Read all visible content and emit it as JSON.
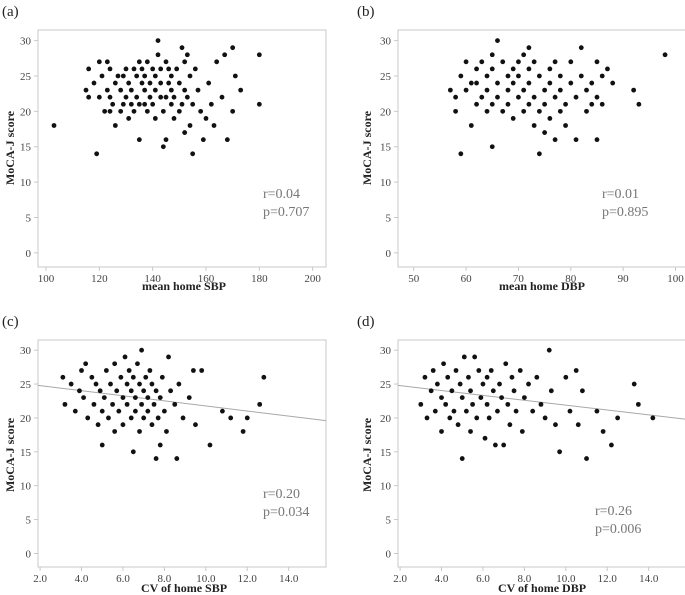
{
  "chart_data": [
    {
      "type": "scatter",
      "panel": "(a)",
      "xlabel": "mean home SBP",
      "ylabel": "MoCA-J score",
      "xlim": [
        97,
        205
      ],
      "ylim": [
        -2,
        31.5
      ],
      "xticks": [
        "100",
        "120",
        "140",
        "160",
        "180",
        "200"
      ],
      "xtickvals": [
        100,
        120,
        140,
        160,
        180,
        200
      ],
      "yticks": [
        "0",
        "5",
        "10",
        "15",
        "20",
        "25",
        "30"
      ],
      "ytickvals": [
        0,
        5,
        10,
        15,
        20,
        25,
        30
      ],
      "stats": [
        "r=0.04",
        "p=0.707"
      ],
      "fit_line": null,
      "points": [
        [
          103,
          18
        ],
        [
          115,
          23
        ],
        [
          116,
          22
        ],
        [
          116,
          26
        ],
        [
          118,
          24
        ],
        [
          119,
          14
        ],
        [
          120,
          22
        ],
        [
          120,
          27
        ],
        [
          121,
          25
        ],
        [
          122,
          20
        ],
        [
          123,
          23
        ],
        [
          123,
          27
        ],
        [
          124,
          20
        ],
        [
          124,
          22
        ],
        [
          124,
          26
        ],
        [
          125,
          21
        ],
        [
          126,
          18
        ],
        [
          126,
          24
        ],
        [
          127,
          25
        ],
        [
          128,
          20
        ],
        [
          128,
          23
        ],
        [
          129,
          21
        ],
        [
          129,
          25
        ],
        [
          130,
          22
        ],
        [
          130,
          26
        ],
        [
          131,
          19
        ],
        [
          131,
          24
        ],
        [
          132,
          21
        ],
        [
          132,
          23
        ],
        [
          133,
          20
        ],
        [
          133,
          26
        ],
        [
          134,
          22
        ],
        [
          134,
          25
        ],
        [
          135,
          16
        ],
        [
          135,
          21
        ],
        [
          135,
          27
        ],
        [
          136,
          24
        ],
        [
          136,
          26
        ],
        [
          137,
          21
        ],
        [
          137,
          23
        ],
        [
          137,
          25
        ],
        [
          138,
          20
        ],
        [
          138,
          27
        ],
        [
          139,
          22
        ],
        [
          139,
          24
        ],
        [
          140,
          21
        ],
        [
          140,
          26
        ],
        [
          141,
          19
        ],
        [
          141,
          23
        ],
        [
          141,
          25
        ],
        [
          142,
          28
        ],
        [
          142,
          30
        ],
        [
          143,
          22
        ],
        [
          143,
          24
        ],
        [
          143,
          26
        ],
        [
          144,
          15
        ],
        [
          144,
          20
        ],
        [
          145,
          16
        ],
        [
          145,
          22
        ],
        [
          145,
          27
        ],
        [
          146,
          24
        ],
        [
          146,
          26
        ],
        [
          147,
          21
        ],
        [
          147,
          23
        ],
        [
          147,
          25
        ],
        [
          148,
          19
        ],
        [
          148,
          22
        ],
        [
          149,
          26
        ],
        [
          150,
          20
        ],
        [
          150,
          24
        ],
        [
          151,
          29
        ],
        [
          151,
          21
        ],
        [
          152,
          17
        ],
        [
          152,
          23
        ],
        [
          152,
          27
        ],
        [
          153,
          28
        ],
        [
          153,
          22
        ],
        [
          154,
          18
        ],
        [
          154,
          25
        ],
        [
          155,
          14
        ],
        [
          155,
          21
        ],
        [
          156,
          26
        ],
        [
          157,
          23
        ],
        [
          158,
          20
        ],
        [
          159,
          16
        ],
        [
          160,
          19
        ],
        [
          161,
          24
        ],
        [
          162,
          21
        ],
        [
          163,
          18
        ],
        [
          164,
          27
        ],
        [
          166,
          22
        ],
        [
          167,
          28
        ],
        [
          168,
          16
        ],
        [
          170,
          29
        ],
        [
          170,
          20
        ],
        [
          171,
          25
        ],
        [
          173,
          23
        ],
        [
          180,
          28
        ],
        [
          180,
          21
        ]
      ]
    },
    {
      "type": "scatter",
      "panel": "(b)",
      "xlabel": "mean home DBP",
      "ylabel": "MoCA-J score",
      "xlim": [
        47,
        102
      ],
      "ylim": [
        -2,
        31.5
      ],
      "xticks": [
        "50",
        "60",
        "70",
        "80",
        "90",
        "100"
      ],
      "xtickvals": [
        50,
        60,
        70,
        80,
        90,
        100
      ],
      "yticks": [
        "0",
        "5",
        "10",
        "15",
        "20",
        "25",
        "30"
      ],
      "ytickvals": [
        0,
        5,
        10,
        15,
        20,
        25,
        30
      ],
      "stats": [
        "r=0.01",
        "p=0.895"
      ],
      "fit_line": null,
      "points": [
        [
          57,
          23
        ],
        [
          58,
          20
        ],
        [
          58,
          22
        ],
        [
          59,
          14
        ],
        [
          59,
          25
        ],
        [
          60,
          27
        ],
        [
          60,
          23
        ],
        [
          61,
          18
        ],
        [
          61,
          24
        ],
        [
          62,
          21
        ],
        [
          62,
          26
        ],
        [
          62,
          24
        ],
        [
          63,
          22
        ],
        [
          63,
          27
        ],
        [
          64,
          20
        ],
        [
          64,
          25
        ],
        [
          64,
          23
        ],
        [
          65,
          21
        ],
        [
          65,
          26
        ],
        [
          65,
          28
        ],
        [
          65,
          15
        ],
        [
          66,
          30
        ],
        [
          66,
          24
        ],
        [
          66,
          22
        ],
        [
          67,
          27
        ],
        [
          67,
          20
        ],
        [
          68,
          25
        ],
        [
          68,
          23
        ],
        [
          68,
          21
        ],
        [
          69,
          26
        ],
        [
          69,
          19
        ],
        [
          69,
          24
        ],
        [
          70,
          22
        ],
        [
          70,
          27
        ],
        [
          70,
          25
        ],
        [
          71,
          23
        ],
        [
          71,
          28
        ],
        [
          71,
          20
        ],
        [
          72,
          21
        ],
        [
          72,
          29
        ],
        [
          72,
          24
        ],
        [
          72,
          26
        ],
        [
          73,
          22
        ],
        [
          73,
          18
        ],
        [
          73,
          27
        ],
        [
          74,
          25
        ],
        [
          74,
          14
        ],
        [
          74,
          20
        ],
        [
          75,
          23
        ],
        [
          75,
          21
        ],
        [
          75,
          17
        ],
        [
          76,
          26
        ],
        [
          76,
          24
        ],
        [
          76,
          19
        ],
        [
          77,
          22
        ],
        [
          77,
          27
        ],
        [
          77,
          16
        ],
        [
          78,
          25
        ],
        [
          78,
          20
        ],
        [
          78,
          23
        ],
        [
          79,
          18
        ],
        [
          79,
          21
        ],
        [
          80,
          27
        ],
        [
          80,
          24
        ],
        [
          81,
          16
        ],
        [
          81,
          22
        ],
        [
          82,
          29
        ],
        [
          82,
          25
        ],
        [
          83,
          23
        ],
        [
          83,
          20
        ],
        [
          84,
          21
        ],
        [
          84,
          24
        ],
        [
          85,
          22
        ],
        [
          85,
          27
        ],
        [
          85,
          16
        ],
        [
          86,
          21
        ],
        [
          86,
          25
        ],
        [
          87,
          26
        ],
        [
          88,
          24
        ],
        [
          92,
          23
        ],
        [
          93,
          21
        ],
        [
          98,
          28
        ]
      ]
    },
    {
      "type": "scatter",
      "panel": "(c)",
      "xlabel": "CV of home SBP",
      "ylabel": "MoCA-J score",
      "xlim": [
        1.9,
        15.8
      ],
      "ylim": [
        -2,
        31.5
      ],
      "xticks": [
        "2.0",
        "4.0",
        "6.0",
        "8.0",
        "10.0",
        "12.0",
        "14.0"
      ],
      "xtickvals": [
        2,
        4,
        6,
        8,
        10,
        12,
        14
      ],
      "yticks": [
        "0",
        "5",
        "10",
        "15",
        "20",
        "25",
        "30"
      ],
      "ytickvals": [
        0,
        5,
        10,
        15,
        20,
        25,
        30
      ],
      "stats": [
        "r=0.20",
        "p=0.034"
      ],
      "fit_line": [
        [
          1.9,
          24.8
        ],
        [
          15.8,
          19.6
        ]
      ],
      "points": [
        [
          3.1,
          26
        ],
        [
          3.2,
          22
        ],
        [
          3.5,
          25
        ],
        [
          3.7,
          21
        ],
        [
          3.9,
          24
        ],
        [
          4.0,
          27
        ],
        [
          4.1,
          23
        ],
        [
          4.2,
          28
        ],
        [
          4.3,
          20
        ],
        [
          4.5,
          26
        ],
        [
          4.6,
          22
        ],
        [
          4.7,
          25
        ],
        [
          4.8,
          19
        ],
        [
          4.9,
          24
        ],
        [
          5.0,
          16
        ],
        [
          5.0,
          21
        ],
        [
          5.1,
          23
        ],
        [
          5.2,
          27
        ],
        [
          5.3,
          20
        ],
        [
          5.4,
          25
        ],
        [
          5.5,
          22
        ],
        [
          5.6,
          18
        ],
        [
          5.6,
          28
        ],
        [
          5.7,
          24
        ],
        [
          5.8,
          21
        ],
        [
          5.9,
          26
        ],
        [
          6.0,
          23
        ],
        [
          6.0,
          19
        ],
        [
          6.1,
          29
        ],
        [
          6.2,
          25
        ],
        [
          6.2,
          22
        ],
        [
          6.3,
          27
        ],
        [
          6.4,
          20
        ],
        [
          6.4,
          24
        ],
        [
          6.5,
          15
        ],
        [
          6.5,
          26
        ],
        [
          6.6,
          21
        ],
        [
          6.6,
          23
        ],
        [
          6.7,
          28
        ],
        [
          6.8,
          18
        ],
        [
          6.8,
          25
        ],
        [
          6.9,
          22
        ],
        [
          6.9,
          30
        ],
        [
          7.0,
          24
        ],
        [
          7.0,
          20
        ],
        [
          7.1,
          26
        ],
        [
          7.2,
          21
        ],
        [
          7.2,
          23
        ],
        [
          7.3,
          27
        ],
        [
          7.4,
          19
        ],
        [
          7.4,
          25
        ],
        [
          7.5,
          22
        ],
        [
          7.6,
          14
        ],
        [
          7.6,
          24
        ],
        [
          7.7,
          20
        ],
        [
          7.8,
          16
        ],
        [
          7.8,
          23
        ],
        [
          7.9,
          26
        ],
        [
          8.0,
          21
        ],
        [
          8.1,
          18
        ],
        [
          8.2,
          29
        ],
        [
          8.3,
          24
        ],
        [
          8.5,
          22
        ],
        [
          8.6,
          14
        ],
        [
          8.7,
          25
        ],
        [
          8.9,
          20
        ],
        [
          9.2,
          23
        ],
        [
          9.4,
          27
        ],
        [
          9.5,
          19
        ],
        [
          9.8,
          27
        ],
        [
          10.2,
          16
        ],
        [
          10.8,
          21
        ],
        [
          11.2,
          20
        ],
        [
          11.8,
          18
        ],
        [
          12.0,
          20
        ],
        [
          12.6,
          22
        ],
        [
          12.8,
          26
        ]
      ]
    },
    {
      "type": "scatter",
      "panel": "(d)",
      "xlabel": "CV of home DBP",
      "ylabel": "MoCA-J score",
      "xlim": [
        1.9,
        15.8
      ],
      "ylim": [
        -2,
        31.5
      ],
      "xticks": [
        "2.0",
        "4.0",
        "6.0",
        "8.0",
        "10.0",
        "12.0",
        "14.0"
      ],
      "xtickvals": [
        2,
        4,
        6,
        8,
        10,
        12,
        14
      ],
      "yticks": [
        "0",
        "5",
        "10",
        "15",
        "20",
        "25",
        "30"
      ],
      "ytickvals": [
        0,
        5,
        10,
        15,
        20,
        25,
        30
      ],
      "stats": [
        "r=0.26",
        "p=0.006"
      ],
      "fit_line": [
        [
          1.9,
          24.8
        ],
        [
          15.8,
          19.8
        ]
      ],
      "points": [
        [
          3.0,
          22
        ],
        [
          3.2,
          26
        ],
        [
          3.3,
          20
        ],
        [
          3.5,
          24
        ],
        [
          3.6,
          27
        ],
        [
          3.7,
          21
        ],
        [
          3.8,
          25
        ],
        [
          4.0,
          23
        ],
        [
          4.0,
          18
        ],
        [
          4.1,
          28
        ],
        [
          4.2,
          22
        ],
        [
          4.3,
          26
        ],
        [
          4.4,
          20
        ],
        [
          4.5,
          24
        ],
        [
          4.6,
          21
        ],
        [
          4.7,
          27
        ],
        [
          4.8,
          19
        ],
        [
          4.9,
          25
        ],
        [
          5.0,
          14
        ],
        [
          5.0,
          23
        ],
        [
          5.1,
          29
        ],
        [
          5.2,
          21
        ],
        [
          5.3,
          26
        ],
        [
          5.4,
          18
        ],
        [
          5.4,
          24
        ],
        [
          5.5,
          22
        ],
        [
          5.6,
          29
        ],
        [
          5.7,
          20
        ],
        [
          5.8,
          27
        ],
        [
          5.9,
          23
        ],
        [
          6.0,
          25
        ],
        [
          6.1,
          17
        ],
        [
          6.2,
          22
        ],
        [
          6.2,
          26
        ],
        [
          6.3,
          20
        ],
        [
          6.4,
          27
        ],
        [
          6.5,
          24
        ],
        [
          6.6,
          16
        ],
        [
          6.7,
          21
        ],
        [
          6.8,
          25
        ],
        [
          6.9,
          23
        ],
        [
          7.0,
          16
        ],
        [
          7.1,
          28
        ],
        [
          7.2,
          22
        ],
        [
          7.3,
          19
        ],
        [
          7.4,
          26
        ],
        [
          7.5,
          24
        ],
        [
          7.6,
          21
        ],
        [
          7.8,
          27
        ],
        [
          7.9,
          18
        ],
        [
          8.0,
          23
        ],
        [
          8.2,
          25
        ],
        [
          8.4,
          21
        ],
        [
          8.6,
          26
        ],
        [
          8.8,
          22
        ],
        [
          9.0,
          20
        ],
        [
          9.2,
          30
        ],
        [
          9.3,
          24
        ],
        [
          9.5,
          19
        ],
        [
          9.7,
          15
        ],
        [
          10.0,
          26
        ],
        [
          10.2,
          21
        ],
        [
          10.5,
          27
        ],
        [
          10.6,
          19
        ],
        [
          10.8,
          24
        ],
        [
          11.0,
          14
        ],
        [
          11.5,
          21
        ],
        [
          11.8,
          18
        ],
        [
          12.2,
          16
        ],
        [
          12.5,
          20
        ],
        [
          13.3,
          25
        ],
        [
          13.5,
          22
        ],
        [
          14.2,
          20
        ]
      ]
    }
  ]
}
